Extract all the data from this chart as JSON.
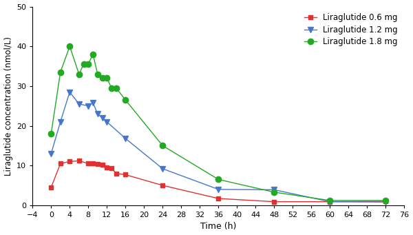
{
  "title": "",
  "xlabel": "Time (h)",
  "ylabel": "Liraglutide concentration (nmol/L)",
  "xlim": [
    -4,
    76
  ],
  "ylim": [
    0,
    50
  ],
  "xticks": [
    -4,
    0,
    4,
    8,
    12,
    16,
    20,
    24,
    28,
    32,
    36,
    40,
    44,
    48,
    52,
    56,
    60,
    64,
    68,
    72,
    76
  ],
  "yticks": [
    0,
    10,
    20,
    30,
    40,
    50
  ],
  "series": [
    {
      "label": "Liraglutide 0.6 mg",
      "color": "#e03030",
      "marker": "s",
      "markersize": 5,
      "x": [
        0,
        2,
        4,
        6,
        8,
        9,
        10,
        11,
        12,
        13,
        14,
        16,
        24,
        36,
        48,
        60,
        72
      ],
      "y": [
        4.5,
        10.5,
        11.0,
        11.2,
        10.5,
        10.5,
        10.3,
        10.2,
        9.5,
        9.3,
        8.0,
        7.7,
        5.0,
        1.7,
        0.9,
        0.9,
        1.0
      ]
    },
    {
      "label": "Liraglutide 1.2 mg",
      "color": "#4477cc",
      "marker": "v",
      "markersize": 6,
      "x": [
        0,
        2,
        4,
        6,
        8,
        9,
        10,
        11,
        12,
        16,
        24,
        36,
        48,
        60,
        72
      ],
      "y": [
        13.0,
        21.0,
        28.5,
        25.5,
        25.0,
        25.8,
        23.0,
        22.0,
        21.0,
        16.8,
        9.2,
        4.0,
        3.9,
        0.9,
        0.8
      ]
    },
    {
      "label": "Liraglutide 1.8 mg",
      "color": "#22aa22",
      "marker": "o",
      "markersize": 6,
      "x": [
        0,
        2,
        4,
        6,
        7,
        8,
        9,
        10,
        11,
        12,
        13,
        14,
        16,
        24,
        36,
        48,
        60,
        72
      ],
      "y": [
        18.0,
        33.5,
        40.0,
        33.0,
        35.5,
        35.5,
        38.0,
        33.0,
        32.0,
        32.0,
        29.5,
        29.5,
        26.5,
        15.0,
        6.5,
        3.3,
        1.2,
        1.2
      ]
    }
  ],
  "legend_loc": "upper right",
  "figsize": [
    6.0,
    3.41
  ],
  "dpi": 100
}
